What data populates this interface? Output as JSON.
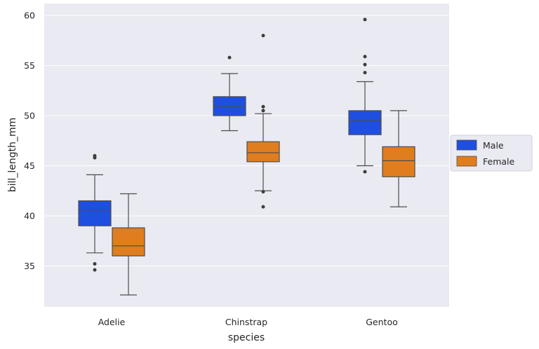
{
  "chart_data": {
    "type": "box",
    "title": "",
    "xlabel": "species",
    "ylabel": "bill_length_mm",
    "categories": [
      "Adelie",
      "Chinstrap",
      "Gentoo"
    ],
    "yticks": [
      35,
      40,
      45,
      50,
      55,
      60
    ],
    "ylim": [
      30.9,
      61.2
    ],
    "grid": true,
    "legend_position": "right",
    "colors": {
      "background": "#eaeaf2",
      "grid": "#ffffff",
      "Male": "#1f4fe0",
      "Female": "#e07d1f",
      "line": "#4d4d4d"
    },
    "series": [
      {
        "name": "Male",
        "boxes": [
          {
            "whislo": 36.3,
            "q1": 39.0,
            "med": 40.6,
            "q3": 41.5,
            "whishi": 44.1,
            "fliers": [
              34.6,
              35.2,
              45.8,
              46.0
            ]
          },
          {
            "whislo": 48.5,
            "q1": 50.0,
            "med": 50.9,
            "q3": 51.9,
            "whishi": 54.2,
            "fliers": [
              55.8
            ]
          },
          {
            "whislo": 45.0,
            "q1": 48.1,
            "med": 49.5,
            "q3": 50.5,
            "whishi": 53.4,
            "fliers": [
              44.4,
              54.3,
              55.1,
              55.9,
              59.6
            ]
          }
        ]
      },
      {
        "name": "Female",
        "boxes": [
          {
            "whislo": 32.1,
            "q1": 36.0,
            "med": 37.0,
            "q3": 38.8,
            "whishi": 42.2,
            "fliers": []
          },
          {
            "whislo": 42.5,
            "q1": 45.4,
            "med": 46.3,
            "q3": 47.4,
            "whishi": 50.2,
            "fliers": [
              40.9,
              42.4,
              50.5,
              50.9,
              58.0
            ]
          },
          {
            "whislo": 40.9,
            "q1": 43.9,
            "med": 45.5,
            "q3": 46.9,
            "whishi": 50.5,
            "fliers": []
          }
        ]
      }
    ]
  }
}
